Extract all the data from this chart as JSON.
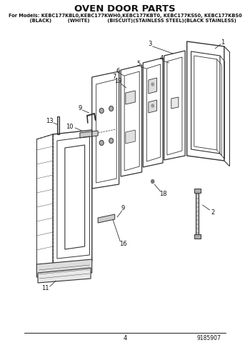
{
  "title": "OVEN DOOR PARTS",
  "subtitle_line1": "For Models: KEBC177KBL0,KEBC177KWH0,KEBC177KBT0, KEBC177KSS0, KEBC177KBS0",
  "subtitle_line2": "          (BLACK)          (WHITE)           (BISCUIT)(STAINLESS STEEL)(BLACK STAINLESS)",
  "page_number": "4",
  "doc_number": "9185907",
  "bg_color": "#ffffff",
  "lc": "#333333",
  "tc": "#111111",
  "fig_width": 3.5,
  "fig_height": 4.83,
  "dpi": 100
}
